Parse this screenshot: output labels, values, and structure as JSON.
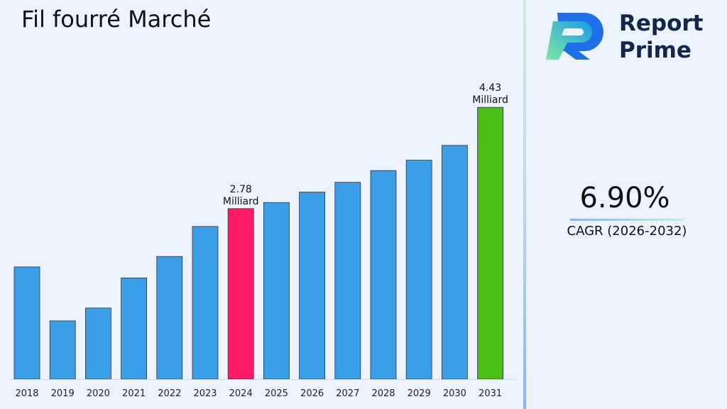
{
  "header": {
    "title": "Fil fourré Marché"
  },
  "brand": {
    "line1": "Report",
    "line2": "Prime"
  },
  "cagr": {
    "value": "6.90%",
    "label": "CAGR (2026-2032)"
  },
  "colors": {
    "bar_default": "#3a9fe8",
    "bar_highlight_2024": "#ff1a66",
    "bar_highlight_2031": "#4cbf14",
    "brand_dark": "#12254a"
  },
  "chart_data": {
    "type": "bar",
    "title": "Fil fourré Marché",
    "xlabel": "",
    "ylabel": "",
    "categories": [
      "2018",
      "2019",
      "2020",
      "2021",
      "2022",
      "2023",
      "2024",
      "2025",
      "2026",
      "2027",
      "2028",
      "2029",
      "2030",
      "2031"
    ],
    "values": [
      1.83,
      0.95,
      1.16,
      1.65,
      2.0,
      2.49,
      2.78,
      2.88,
      3.05,
      3.21,
      3.4,
      3.57,
      3.81,
      4.43
    ],
    "unit": "Milliard",
    "ylim": [
      0,
      5.0
    ],
    "grid": false,
    "highlights": [
      {
        "category": "2024",
        "label_value": "2.78",
        "label_unit": "Milliard",
        "color": "#ff1a66"
      },
      {
        "category": "2031",
        "label_value": "4.43",
        "label_unit": "Milliard",
        "color": "#4cbf14"
      }
    ]
  }
}
